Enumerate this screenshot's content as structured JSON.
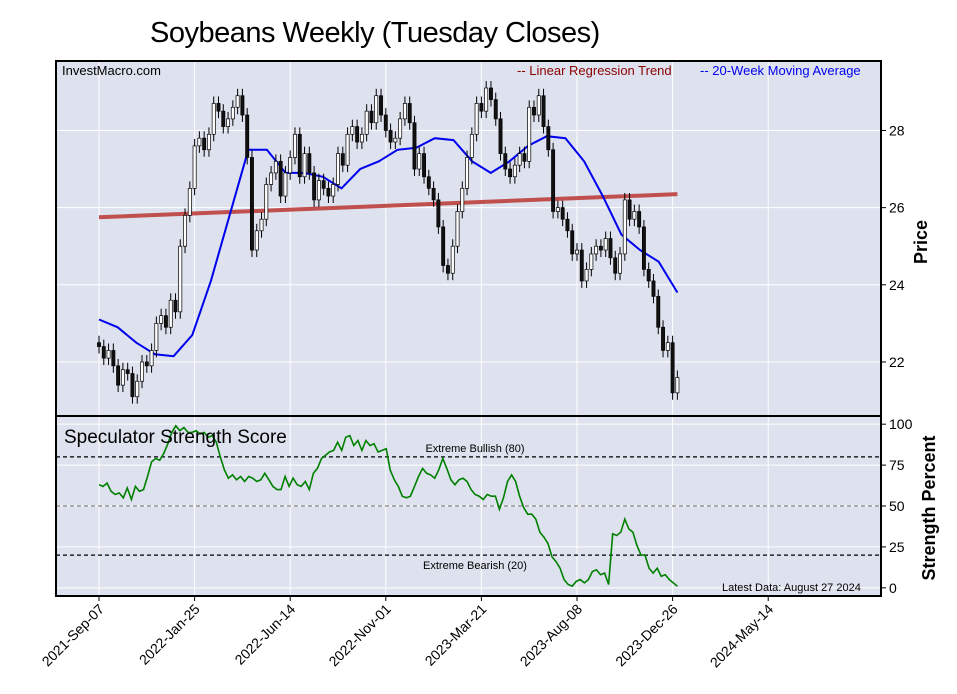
{
  "title": "Soybeans Weekly (Tuesday Closes)",
  "chart_data": [
    {
      "type": "candlestick",
      "panel": "price",
      "watermark": "InvestMacro.com",
      "ylabel": "Price",
      "ylim": [
        20.6,
        29.8
      ],
      "yticks": [
        22,
        24,
        26,
        28
      ],
      "grid": true,
      "legend_placement": "top-right",
      "legend": [
        {
          "label": "-- Linear Regression Trend",
          "color": "#8b0000"
        },
        {
          "label": "-- 20-Week Moving Average",
          "color": "#0000ee"
        }
      ],
      "x_tick_labels": [
        "2021-Sep-07",
        "2022-Jan-25",
        "2022-Jun-14",
        "2022-Nov-01",
        "2023-Mar-21",
        "2023-Aug-08",
        "2023-Dec-26",
        "2024-May-14"
      ],
      "x_tick_index": [
        0,
        20,
        40,
        60,
        80,
        100,
        120,
        140
      ],
      "closes": [
        22.4,
        22.1,
        22.3,
        21.9,
        21.4,
        21.8,
        21.7,
        21.1,
        21.5,
        22.0,
        21.9,
        22.3,
        23.0,
        23.2,
        22.9,
        23.6,
        23.3,
        25.0,
        25.8,
        26.5,
        27.6,
        27.8,
        27.5,
        27.9,
        28.7,
        28.5,
        28.1,
        28.3,
        28.6,
        28.9,
        28.4,
        27.3,
        24.9,
        25.4,
        25.7,
        26.6,
        26.9,
        27.2,
        26.3,
        26.9,
        27.3,
        27.9,
        26.8,
        27.4,
        26.9,
        26.2,
        26.7,
        26.5,
        26.3,
        26.6,
        27.4,
        27.1,
        27.9,
        28.1,
        27.7,
        27.9,
        28.5,
        28.2,
        28.9,
        28.4,
        28.0,
        27.7,
        27.8,
        28.3,
        28.7,
        28.2,
        27.0,
        27.4,
        26.8,
        26.5,
        26.2,
        25.5,
        24.5,
        24.3,
        25.0,
        25.9,
        26.5,
        27.3,
        27.9,
        28.7,
        28.5,
        29.1,
        28.8,
        28.3,
        27.4,
        27.0,
        26.8,
        27.1,
        27.4,
        27.2,
        28.6,
        28.4,
        28.9,
        28.1,
        27.5,
        25.9,
        26.0,
        25.7,
        25.4,
        24.8,
        24.9,
        24.1,
        24.4,
        24.8,
        25.0,
        24.9,
        25.2,
        24.7,
        24.3,
        24.8,
        26.2,
        25.7,
        25.9,
        25.5,
        24.4,
        24.1,
        23.7,
        22.9,
        22.3,
        22.5,
        21.2,
        21.6
      ],
      "regression_trend": [
        25.75,
        26.35
      ],
      "moving_average_20": [
        23.1,
        22.9,
        22.5,
        22.2,
        22.15,
        22.7,
        24.1,
        25.8,
        27.5,
        27.5,
        26.9,
        26.9,
        26.8,
        26.5,
        27.0,
        27.2,
        27.5,
        27.55,
        27.8,
        27.75,
        27.2,
        26.9,
        27.2,
        27.6,
        27.85,
        27.8,
        27.2,
        26.3,
        25.3,
        24.9,
        24.6,
        23.8
      ],
      "latest_close": 21.6
    },
    {
      "type": "line",
      "panel": "strength",
      "title": "Speculator Strength Score",
      "ylabel": "Strength Percent",
      "ylim": [
        -5,
        105
      ],
      "yticks": [
        0,
        25,
        50,
        75,
        100
      ],
      "reference_lines": [
        {
          "value": 80,
          "label": "Extreme Bullish (80)"
        },
        {
          "value": 50,
          "label": ""
        },
        {
          "value": 20,
          "label": "Extreme Bearish (20)"
        }
      ],
      "note": "Latest Data: August 27 2024",
      "series": [
        {
          "color": "#008000",
          "values": [
            63,
            62,
            64,
            59,
            57,
            58,
            55,
            61,
            54,
            62,
            59,
            60,
            68,
            77,
            79,
            78,
            82,
            88,
            95,
            99,
            96,
            98,
            95,
            95,
            96,
            94,
            95,
            92,
            93,
            89,
            80,
            72,
            67,
            69,
            66,
            68,
            65,
            68,
            67,
            65,
            66,
            70,
            66,
            62,
            60,
            60,
            68,
            62,
            67,
            63,
            62,
            65,
            60,
            70,
            73,
            79,
            81,
            83,
            84,
            89,
            84,
            92,
            93,
            87,
            90,
            84,
            90,
            87,
            88,
            83,
            84,
            85,
            72,
            66,
            62,
            56,
            55,
            56,
            62,
            68,
            73,
            70,
            69,
            67,
            72,
            79,
            73,
            66,
            63,
            66,
            67,
            65,
            60,
            57,
            56,
            54,
            57,
            56,
            56,
            48,
            55,
            65,
            69,
            65,
            56,
            49,
            45,
            45,
            42,
            34,
            31,
            27,
            19,
            16,
            12,
            5,
            2,
            1,
            4,
            5,
            3,
            5,
            10,
            11,
            8,
            9,
            2,
            33,
            32,
            34,
            42,
            36,
            34,
            26,
            20,
            20,
            12,
            9,
            12,
            7,
            8,
            5,
            3,
            1
          ]
        }
      ]
    }
  ]
}
